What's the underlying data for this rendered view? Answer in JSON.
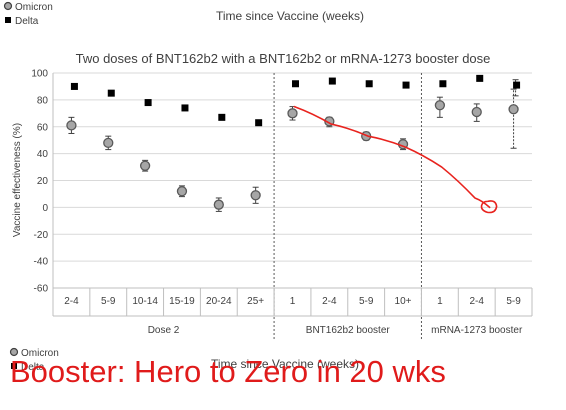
{
  "chart_data": {
    "type": "scatter",
    "title": "Two doses of BNT162b2 with a BNT162b2 or mRNA-1273 booster dose",
    "xlabel": "Time since Vaccine (weeks)",
    "ylabel": "Vaccine effectiveness (%)",
    "ylim": [
      -60,
      100
    ],
    "yticks": [
      -60,
      -40,
      -20,
      0,
      20,
      40,
      60,
      80,
      100
    ],
    "grid": true,
    "legend": [
      "Omicron",
      "Delta"
    ],
    "legend_placement": "top-left",
    "groups": [
      {
        "name": "Dose 2",
        "categories": [
          "2-4",
          "5-9",
          "10-14",
          "15-19",
          "20-24",
          "25+"
        ]
      },
      {
        "name": "BNT162b2 booster",
        "categories": [
          "1",
          "2-4",
          "5-9",
          "10+"
        ]
      },
      {
        "name": "mRNA-1273 booster",
        "categories": [
          "1",
          "2-4",
          "5-9"
        ]
      }
    ],
    "categories": [
      "2-4",
      "5-9",
      "10-14",
      "15-19",
      "20-24",
      "25+",
      "1",
      "2-4",
      "5-9",
      "10+",
      "1",
      "2-4",
      "5-9"
    ],
    "series": [
      {
        "name": "Omicron",
        "values": [
          61,
          48,
          31,
          12,
          2,
          9,
          70,
          64,
          53,
          47,
          76,
          71,
          73
        ],
        "err_low": [
          55,
          43,
          27,
          8,
          -3,
          3,
          65,
          60,
          50,
          43,
          67,
          64,
          44
        ],
        "err_high": [
          67,
          53,
          35,
          16,
          7,
          15,
          75,
          67,
          56,
          51,
          82,
          77,
          88
        ]
      },
      {
        "name": "Delta",
        "values": [
          90,
          85,
          78,
          74,
          67,
          63,
          92,
          94,
          92,
          91,
          92,
          96,
          91
        ],
        "err_low": [
          null,
          null,
          null,
          null,
          null,
          null,
          null,
          null,
          null,
          null,
          null,
          null,
          83
        ],
        "err_high": [
          null,
          null,
          null,
          null,
          null,
          null,
          null,
          null,
          null,
          null,
          null,
          null,
          95
        ]
      }
    ],
    "annotation": {
      "type": "hand-drawn trend line",
      "color": "#e8231e",
      "path": [
        [
          6,
          75
        ],
        [
          7,
          62
        ],
        [
          8,
          53
        ],
        [
          9,
          45
        ],
        [
          10,
          30
        ],
        [
          10.9,
          7
        ],
        [
          11.3,
          0
        ]
      ]
    }
  },
  "header_caption": "Time since Vaccine (weeks)",
  "headline": "Booster: Hero to Zero in 20 wks",
  "colors": {
    "omicron_marker": "#a6a6a6",
    "delta_marker": "#000000",
    "annotation": "#e8231e",
    "headline": "#e01b1b"
  }
}
